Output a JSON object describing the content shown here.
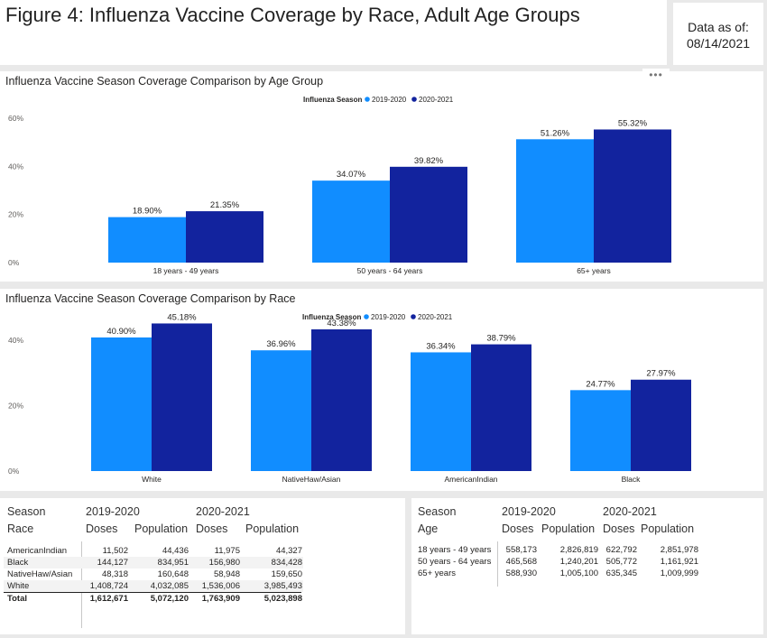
{
  "header": {
    "title": "Figure 4: Influenza Vaccine Coverage by Race, Adult Age Groups",
    "date_label": "Data as of:",
    "date_value": "08/14/2021"
  },
  "colors": {
    "s2019": "#118dff",
    "s2020": "#12239e"
  },
  "chart_data": [
    {
      "type": "bar",
      "title": "Influenza Vaccine Season Coverage Comparison by Age Group",
      "legend_title": "Influenza Season",
      "legend_position": "top-center",
      "categories": [
        "18 years - 49 years",
        "50 years - 64 years",
        "65+ years"
      ],
      "series": [
        {
          "name": "2019-2020",
          "values": [
            18.9,
            34.07,
            51.26
          ],
          "labels": [
            "18.90%",
            "34.07%",
            "51.26%"
          ]
        },
        {
          "name": "2020-2021",
          "values": [
            21.35,
            39.82,
            55.32
          ],
          "labels": [
            "21.35%",
            "39.82%",
            "55.32%"
          ]
        }
      ],
      "yticks": [
        "0%",
        "20%",
        "40%",
        "60%"
      ],
      "ylim": [
        0,
        60
      ],
      "grid": false
    },
    {
      "type": "bar",
      "title": "Influenza Vaccine Season Coverage Comparison by Race",
      "legend_title": "Influenza Season",
      "legend_position": "top-center",
      "categories": [
        "White",
        "NativeHaw/Asian",
        "AmericanIndian",
        "Black"
      ],
      "series": [
        {
          "name": "2019-2020",
          "values": [
            40.9,
            36.96,
            36.34,
            24.77
          ],
          "labels": [
            "40.90%",
            "36.96%",
            "36.34%",
            "24.77%"
          ]
        },
        {
          "name": "2020-2021",
          "values": [
            45.18,
            43.38,
            38.79,
            27.97
          ],
          "labels": [
            "45.18%",
            "43.38%",
            "38.79%",
            "27.97%"
          ]
        }
      ],
      "yticks": [
        "0%",
        "20%",
        "40%"
      ],
      "ylim": [
        0,
        50
      ],
      "grid": false
    }
  ],
  "table_race": {
    "header_row1": [
      "Season",
      "2019-2020",
      "2020-2021"
    ],
    "header_row2": [
      "Race",
      "Doses",
      "Population",
      "Doses",
      "Population"
    ],
    "rows": [
      [
        "AmericanIndian",
        "11,502",
        "44,436",
        "11,975",
        "44,327"
      ],
      [
        "Black",
        "144,127",
        "834,951",
        "156,980",
        "834,428"
      ],
      [
        "NativeHaw/Asian",
        "48,318",
        "160,648",
        "58,948",
        "159,650"
      ],
      [
        "White",
        "1,408,724",
        "4,032,085",
        "1,536,006",
        "3,985,493"
      ]
    ],
    "total": [
      "Total",
      "1,612,671",
      "5,072,120",
      "1,763,909",
      "5,023,898"
    ]
  },
  "table_age": {
    "header_row1": [
      "Season",
      "2019-2020",
      "2020-2021"
    ],
    "header_row2": [
      "Age",
      "Doses",
      "Population",
      "Doses",
      "Population"
    ],
    "rows": [
      [
        "18 years - 49 years",
        "558,173",
        "2,826,819",
        "622,792",
        "2,851,978"
      ],
      [
        "50 years - 64 years",
        "465,568",
        "1,240,201",
        "505,772",
        "1,161,921"
      ],
      [
        "65+ years",
        "588,930",
        "1,005,100",
        "635,345",
        "1,009,999"
      ]
    ]
  }
}
